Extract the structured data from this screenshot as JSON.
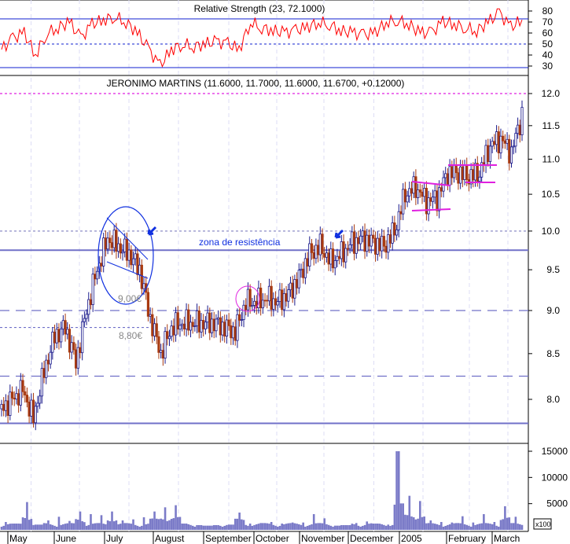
{
  "chart_data": [
    {
      "type": "line",
      "title": "Relative Strength (23, 72.1000)",
      "ylim": [
        20,
        85
      ],
      "yticks": [
        30,
        40,
        50,
        60,
        70,
        80
      ],
      "reference_lines": [
        70,
        50,
        30
      ],
      "series": [
        {
          "values": [
            45,
            55,
            60,
            40,
            60,
            65,
            70,
            55,
            68,
            72,
            75,
            70,
            60,
            45,
            30,
            45,
            50,
            48,
            50,
            52,
            50,
            45,
            70,
            65,
            62,
            60,
            62,
            65,
            70,
            68,
            62,
            60,
            58,
            60,
            70,
            72,
            68,
            60,
            60,
            70,
            68,
            65,
            62,
            70,
            78,
            65,
            72
          ]
        }
      ],
      "color": "#ff0000"
    },
    {
      "type": "candlestick",
      "title": "JERONIMO MARTINS (11.6000, 11.7000, 11.6000, 11.6700, +0.12000)",
      "scale": "log",
      "ylim": [
        7.6,
        12.3
      ],
      "yticks": [
        "8.0",
        "8.5",
        "9.0",
        "9.5",
        "10.0",
        "10.5",
        "11.0",
        "11.5",
        "12.0"
      ],
      "x_period": "weekly closes, May 2004 – March 2005",
      "series": [
        {
          "values": [
            7.9,
            8.0,
            8.1,
            7.8,
            8.3,
            8.7,
            8.8,
            8.4,
            9.0,
            9.5,
            9.9,
            9.8,
            9.7,
            9.5,
            8.9,
            8.5,
            8.8,
            8.85,
            8.85,
            8.85,
            8.85,
            8.8,
            8.75,
            9.1,
            9.1,
            9.15,
            9.1,
            9.2,
            9.4,
            9.7,
            9.8,
            9.6,
            9.7,
            9.85,
            9.9,
            9.85,
            9.8,
            10.0,
            10.5,
            10.6,
            10.4,
            10.45,
            10.8,
            10.8,
            10.75,
            10.8,
            11.2,
            11.3,
            11.1,
            11.67
          ]
        }
      ],
      "up_color": "#1a1a8c",
      "down_color": "#a83a10",
      "horizontal_lines": [
        12.0,
        10.0,
        9.75,
        9.0,
        8.8,
        8.25,
        7.75
      ],
      "annotations": {
        "resistance": "zona de resistência",
        "level_900": "9,00€",
        "level_880": "8,80€"
      }
    },
    {
      "type": "bar",
      "title": "",
      "unit": "x100",
      "ylim": [
        0,
        16000
      ],
      "yticks": [
        "5000",
        "10000",
        "15000"
      ],
      "series": [
        {
          "values": [
            1500,
            1200,
            5300,
            1000,
            1800,
            2500,
            1700,
            3500,
            3000,
            2800,
            3500,
            1800,
            2000,
            2400,
            3500,
            4300,
            4700,
            1200,
            900,
            800,
            900,
            1000,
            3300,
            1200,
            1300,
            1500,
            1200,
            1400,
            1400,
            3000,
            2200,
            800,
            900,
            1300,
            1600,
            1200,
            1000,
            15000,
            6500,
            5500,
            1800,
            1500,
            1400,
            2600,
            1400,
            3000,
            1500,
            4500,
            2500,
            1600
          ]
        }
      ],
      "color": "#7b7bc8"
    }
  ],
  "x_axis": {
    "labels": [
      "May",
      "June",
      "July",
      "August",
      "September",
      "October",
      "November",
      "December",
      "2005",
      "February",
      "March"
    ]
  }
}
